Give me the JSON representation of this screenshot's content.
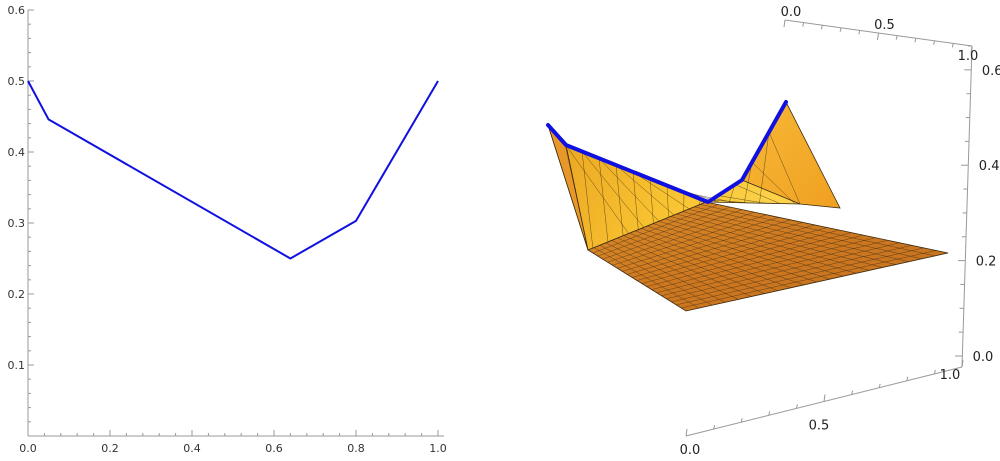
{
  "chart_data": [
    {
      "type": "line",
      "title": "",
      "xlabel": "",
      "ylabel": "",
      "x": [
        0.0,
        0.05,
        0.64,
        0.8,
        1.0
      ],
      "series": [
        {
          "values": [
            0.5,
            0.446,
            0.25,
            0.303,
            0.5
          ],
          "color": "#1010e0"
        }
      ],
      "xlim": [
        0.0,
        1.0
      ],
      "ylim": [
        0.0,
        0.6
      ],
      "x_ticks": [
        "0.0",
        "0.2",
        "0.4",
        "0.6",
        "0.8",
        "1.0"
      ],
      "y_ticks": [
        "0.1",
        "0.2",
        "0.3",
        "0.4",
        "0.5",
        "0.6"
      ],
      "grid": false
    },
    {
      "type": "surface",
      "title": "",
      "x_ticks": [
        "0.0",
        "0.5",
        "1.0"
      ],
      "y_ticks": [
        "0.0",
        "0.5",
        "1.0"
      ],
      "z_ticks": [
        "0.0",
        "0.2",
        "0.4",
        "0.6"
      ],
      "xlim": [
        0.0,
        1.0
      ],
      "ylim": [
        0.0,
        1.0
      ],
      "zlim": [
        0.0,
        0.65
      ],
      "colors": {
        "surface_light": "#f8c030",
        "surface_dark": "#d07818",
        "highlight_curve": "#1010e0"
      }
    }
  ]
}
